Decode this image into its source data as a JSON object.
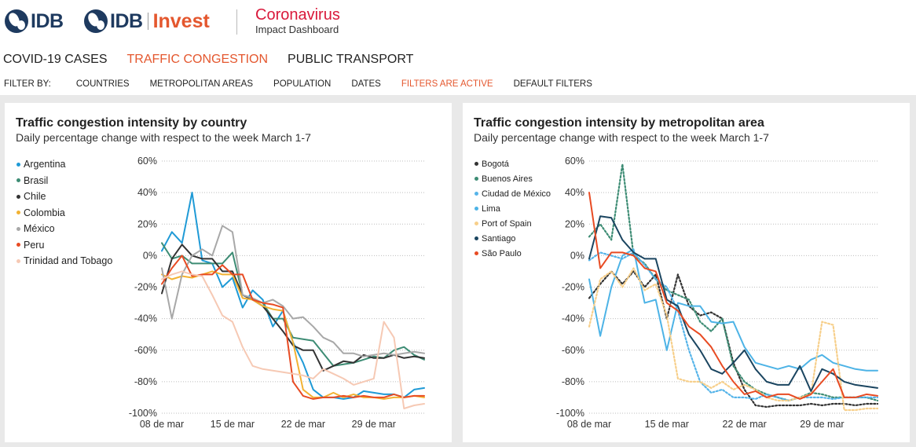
{
  "header": {
    "logo1": "IDB",
    "logo2_prefix": "IDB",
    "logo2_suffix": "Invest",
    "brand_title": "Coronavirus",
    "brand_subtitle": "Impact Dashboard"
  },
  "tabs": [
    {
      "label": "COVID-19 CASES",
      "active": false
    },
    {
      "label": "TRAFFIC CONGESTION",
      "active": true
    },
    {
      "label": "PUBLIC TRANSPORT",
      "active": false
    }
  ],
  "filters": {
    "label": "FILTER BY:",
    "items": [
      "COUNTRIES",
      "METROPOLITAN AREAS",
      "POPULATION",
      "DATES"
    ],
    "active_note": "FILTERS ARE ACTIVE",
    "default": "DEFAULT FILTERS"
  },
  "colors": {
    "accent": "#e4572e",
    "brand_red": "#d9193b",
    "navy": "#1e3a5f"
  },
  "chart_data": [
    {
      "type": "line",
      "title": "Traffic congestion intensity by country",
      "subtitle": "Daily percentage change with respect to the week March 1-7",
      "ylim": [
        -100,
        60
      ],
      "yticks": [
        60,
        40,
        20,
        0,
        -20,
        -40,
        -60,
        -80,
        -100
      ],
      "ytick_labels": [
        "60%",
        "40%",
        "20%",
        "0%",
        "-20%",
        "-40%",
        "-60%",
        "-80%",
        "-100%"
      ],
      "x_start_day": 8,
      "x_end_day": 34,
      "xtick_days": [
        8,
        15,
        22,
        29
      ],
      "xtick_labels": [
        "08 de mar",
        "15 de mar",
        "22 de mar",
        "29 de mar"
      ],
      "grid": "horizontal dotted",
      "legend_position": "left",
      "series": [
        {
          "name": "Argentina",
          "color": "#1f9ad6",
          "dash": false,
          "values": [
            3,
            15,
            8,
            40,
            -3,
            -5,
            -20,
            -14,
            -33,
            -22,
            -28,
            -45,
            -35,
            -55,
            -68,
            -85,
            -90,
            -90,
            -91,
            -90,
            -86,
            -87,
            -88,
            -88,
            -90,
            -85,
            -84
          ]
        },
        {
          "name": "Brasil",
          "color": "#3d8c74",
          "dash": false,
          "values": [
            8,
            -2,
            0,
            -5,
            -5,
            -5,
            -5,
            2,
            -25,
            -28,
            -30,
            -40,
            -40,
            -52,
            -53,
            -54,
            -62,
            -70,
            -69,
            -68,
            -66,
            -64,
            -65,
            -60,
            -58,
            -63,
            -66
          ]
        },
        {
          "name": "Chile",
          "color": "#333333",
          "dash": false,
          "values": [
            -24,
            -2,
            7,
            0,
            -2,
            -2,
            -10,
            -10,
            -25,
            -28,
            -32,
            -40,
            -48,
            -57,
            -60,
            -60,
            -73,
            -70,
            -67,
            -68,
            -63,
            -65,
            -65,
            -63,
            -65,
            -64,
            -65
          ]
        },
        {
          "name": "Colombia",
          "color": "#f2b233",
          "dash": false,
          "values": [
            -12,
            -15,
            -13,
            -14,
            -12,
            -10,
            -12,
            -12,
            -27,
            -28,
            -32,
            -34,
            -35,
            -55,
            -85,
            -90,
            -90,
            -87,
            -90,
            -88,
            -90,
            -90,
            -91,
            -90,
            -90,
            -89,
            -90
          ]
        },
        {
          "name": "México",
          "color": "#a8a8a8",
          "dash": false,
          "values": [
            -8,
            -40,
            -12,
            0,
            4,
            0,
            19,
            15,
            -25,
            -27,
            -30,
            -28,
            -32,
            -40,
            -39,
            -45,
            -52,
            -55,
            -62,
            -62,
            -64,
            -63,
            -62,
            -63,
            -62,
            -61,
            -62
          ]
        },
        {
          "name": "Peru",
          "color": "#e84b23",
          "dash": false,
          "values": [
            -18,
            -8,
            0,
            -13,
            -12,
            -12,
            -6,
            -12,
            -12,
            -28,
            -30,
            -31,
            -33,
            -80,
            -89,
            -91,
            -90,
            -90,
            -89,
            -90,
            -89,
            -90,
            -90,
            -88,
            -90,
            -89,
            -89
          ]
        },
        {
          "name": "Trinidad and Tobago",
          "color": "#f6c9b4",
          "dash": false,
          "values": [
            -15,
            -12,
            -10,
            -12,
            -13,
            -25,
            -38,
            -42,
            -58,
            -70,
            -72,
            -73,
            -74,
            -75,
            -76,
            -78,
            -72,
            -75,
            -78,
            -82,
            -80,
            -78,
            -42,
            -52,
            -97,
            -95,
            -94
          ]
        }
      ]
    },
    {
      "type": "line",
      "title": "Traffic congestion intensity by metropolitan area",
      "subtitle": "Daily percentage change with respect to the week March 1-7",
      "ylim": [
        -100,
        60
      ],
      "yticks": [
        60,
        40,
        20,
        0,
        -20,
        -40,
        -60,
        -80,
        -100
      ],
      "ytick_labels": [
        "60%",
        "40%",
        "20%",
        "0%",
        "-20%",
        "-40%",
        "-60%",
        "-80%",
        "-100%"
      ],
      "x_start_day": 8,
      "x_end_day": 34,
      "xtick_days": [
        8,
        15,
        22,
        29
      ],
      "xtick_labels": [
        "08 de mar",
        "15 de mar",
        "22 de mar",
        "29 de mar"
      ],
      "grid": "horizontal dotted",
      "legend_position": "left",
      "series": [
        {
          "name": "Bogotá",
          "color": "#333333",
          "dash": true,
          "values": [
            -27,
            -18,
            -10,
            -18,
            -10,
            -20,
            -12,
            -40,
            -12,
            -32,
            -38,
            -36,
            -40,
            -68,
            -85,
            -95,
            -96,
            -95,
            -95,
            -95,
            -94,
            -95,
            -94,
            -94,
            -95,
            -94,
            -94
          ]
        },
        {
          "name": "Buenos Aires",
          "color": "#3d8c74",
          "dash": true,
          "values": [
            12,
            20,
            10,
            58,
            0,
            -5,
            -15,
            -22,
            -25,
            -28,
            -42,
            -48,
            -40,
            -70,
            -80,
            -85,
            -88,
            -90,
            -92,
            -90,
            -87,
            -88,
            -90,
            -90,
            -90,
            -90,
            -92
          ]
        },
        {
          "name": "Ciudad de México",
          "color": "#56b4e9",
          "dash": true,
          "values": [
            -3,
            2,
            0,
            -2,
            2,
            -6,
            -15,
            -20,
            -35,
            -60,
            -80,
            -87,
            -85,
            -90,
            -90,
            -91,
            -88,
            -90,
            -92,
            -90,
            -90,
            -90,
            -91,
            -90,
            -90,
            -90,
            -90
          ]
        },
        {
          "name": "Lima",
          "color": "#4db3e6",
          "dash": false,
          "values": [
            -15,
            -51,
            -20,
            0,
            4,
            -30,
            -28,
            -60,
            -30,
            -32,
            -32,
            -42,
            -43,
            -42,
            -58,
            -68,
            -70,
            -72,
            -70,
            -72,
            -66,
            -63,
            -68,
            -70,
            -72,
            -73,
            -73
          ]
        },
        {
          "name": "Port of Spain",
          "color": "#f7cf8a",
          "dash": true,
          "values": [
            -45,
            -15,
            -10,
            -20,
            -8,
            -22,
            -18,
            -38,
            -78,
            -80,
            -80,
            -84,
            -80,
            -85,
            -82,
            -85,
            -90,
            -92,
            -92,
            -90,
            -88,
            -42,
            -44,
            -98,
            -98,
            -97,
            -97
          ]
        },
        {
          "name": "Santiago",
          "color": "#1b4560",
          "dash": false,
          "values": [
            -2,
            25,
            24,
            10,
            2,
            -2,
            -2,
            -28,
            -32,
            -50,
            -60,
            -72,
            -75,
            -68,
            -60,
            -72,
            -80,
            -82,
            -82,
            -70,
            -86,
            -72,
            -75,
            -80,
            -82,
            -83,
            -84
          ]
        },
        {
          "name": "São Paulo",
          "color": "#e84b23",
          "dash": false,
          "values": [
            40,
            -8,
            2,
            2,
            0,
            -8,
            -10,
            -30,
            -35,
            -45,
            -50,
            -58,
            -70,
            -80,
            -88,
            -86,
            -90,
            -88,
            -88,
            -91,
            -88,
            -80,
            -72,
            -90,
            -90,
            -88,
            -89
          ]
        }
      ]
    }
  ]
}
